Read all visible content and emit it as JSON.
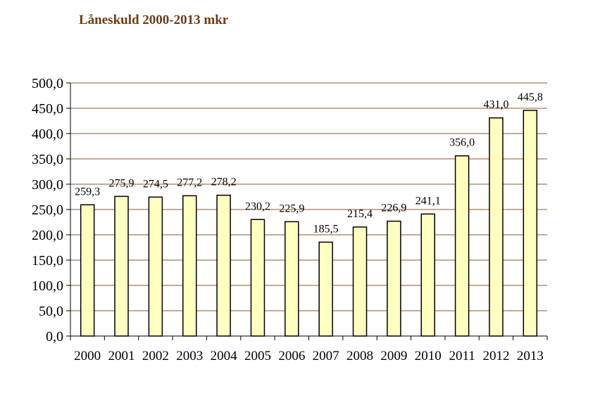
{
  "chart_data": {
    "type": "bar",
    "title": "Låneskuld 2000-2013 mkr",
    "xlabel": "",
    "ylabel": "",
    "categories": [
      "2000",
      "2001",
      "2002",
      "2003",
      "2004",
      "2005",
      "2006",
      "2007",
      "2008",
      "2009",
      "2010",
      "2011",
      "2012",
      "2013"
    ],
    "values": [
      259.3,
      275.9,
      274.5,
      277.2,
      278.2,
      230.2,
      225.9,
      185.5,
      215.4,
      226.9,
      241.1,
      356.0,
      431.0,
      445.8
    ],
    "value_labels": [
      "259,3",
      "275,9",
      "274,5",
      "277,2",
      "278,2",
      "230,2",
      "225,9",
      "185,5",
      "215,4",
      "226,9",
      "241,1",
      "356,0",
      "431,0",
      "445,8"
    ],
    "ylim": [
      0,
      500
    ],
    "yticks": [
      0,
      50,
      100,
      150,
      200,
      250,
      300,
      350,
      400,
      450,
      500
    ],
    "ytick_labels": [
      "0,0",
      "50,0",
      "100,0",
      "150,0",
      "200,0",
      "250,0",
      "300,0",
      "350,0",
      "400,0",
      "450,0",
      "500,0"
    ],
    "grid": true,
    "legend": "none",
    "colors": {
      "bar_fill": "#ffffc0",
      "bar_stroke": "#000000",
      "grid": "#8b5a2b",
      "title": "#6b3e12"
    }
  }
}
